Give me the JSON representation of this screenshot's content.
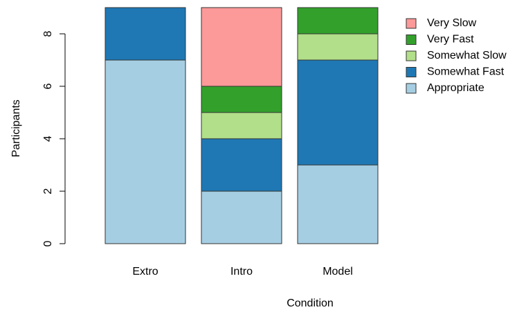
{
  "chart_data": {
    "type": "bar",
    "stacked": true,
    "xlabel": "Condition",
    "ylabel": "Participants",
    "categories": [
      "Extro",
      "Intro",
      "Model"
    ],
    "ylim": [
      0,
      9
    ],
    "yticks": [
      0,
      2,
      4,
      6,
      8
    ],
    "legend_position": "top-right",
    "series": [
      {
        "name": "Appropriate",
        "color": "#a6cee3",
        "values": [
          7,
          2,
          3
        ]
      },
      {
        "name": "Somewhat Fast",
        "color": "#1f78b4",
        "values": [
          2,
          2,
          4
        ]
      },
      {
        "name": "Somewhat Slow",
        "color": "#b2df8a",
        "values": [
          0,
          1,
          1
        ]
      },
      {
        "name": "Very Fast",
        "color": "#33a02c",
        "values": [
          0,
          1,
          1
        ]
      },
      {
        "name": "Very Slow",
        "color": "#fb9a99",
        "values": [
          0,
          3,
          0
        ]
      }
    ],
    "legend": [
      "Very Slow",
      "Very Fast",
      "Somewhat Slow",
      "Somewhat Fast",
      "Appropriate"
    ]
  }
}
